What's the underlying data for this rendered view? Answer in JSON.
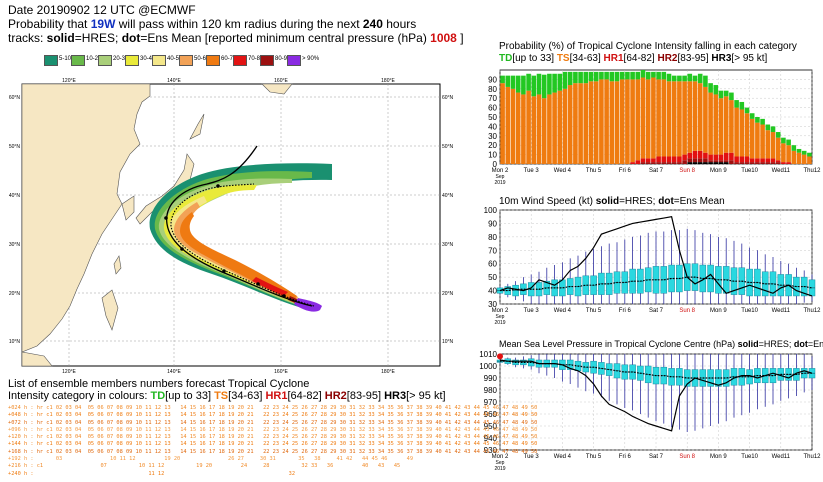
{
  "header": {
    "line1": "Date 20190902 12 UTC   @ECMWF",
    "line2_a": "Probability that ",
    "storm": "19W",
    "line2_b": " will pass within 120 km radius during the next ",
    "hours": "240",
    "line2_c": " hours",
    "line3_a": "tracks: ",
    "solid": "solid",
    "line3_b": "=HRES; ",
    "dot": "dot",
    "line3_c": "=Ens Mean [reported minimum central pressure (hPa) ",
    "pressure": "1008",
    "line3_d": " ]"
  },
  "legend": {
    "items": [
      {
        "label": "5-10",
        "color": "#1a9070"
      },
      {
        "label": "10-20",
        "color": "#69b94a"
      },
      {
        "label": "20-30",
        "color": "#a9cf7a"
      },
      {
        "label": "30-40",
        "color": "#e9ea3a"
      },
      {
        "label": "40-50",
        "color": "#f4e78a"
      },
      {
        "label": "50-60",
        "color": "#f2a257"
      },
      {
        "label": "60-70",
        "color": "#ef7a12"
      },
      {
        "label": "70-80",
        "color": "#e21313"
      },
      {
        "label": "80-90",
        "color": "#9c1010"
      },
      {
        "label": "> 90%",
        "color": "#8a2be2"
      }
    ]
  },
  "map": {
    "lon_labels": [
      "120°E",
      "140°E",
      "160°E",
      "180°E"
    ],
    "lat_labels": [
      "60°N",
      "50°N",
      "40°N",
      "30°N",
      "20°N",
      "10°N"
    ]
  },
  "ensemble": {
    "title": "List of ensemble members numbers forecast Tropical Cyclone",
    "line2_a": "Intensity category in colours: ",
    "td": "TD",
    "td_r": "[up to 33]  ",
    "ts": "TS",
    "ts_r": "[34-63]  ",
    "h1": "HR1",
    "h1_r": "[64-82]  ",
    "h2": "HR2",
    "h2_r": "[83-95]  ",
    "h3": "HR3",
    "h3_r": "[> 95 kt]",
    "rows": [
      "+024 h : hr c1 02 03 04  05 06 07 08 09 10 11 12 13   14 15 16 17 18 19 20 21   22 23 24 25 26 27 28 29 30 31 32 33 34 35 36 37 38 39 40 41 42 43 44 45 46 47 48 49 50",
      "+048 h : hr c1 02 03 04  05 06 07 08 09 10 11 12 13   14 15 16 17 18 19 20 21   22 23 24 25 26 27 28 29 30 31 32 33 34 35 36 37 38 39 40 41 42 43 44 45 46 47 48 49 50",
      "+072 h : hr c1 02 03 04  05 06 07 08 09 10 11 12 13   14 15 16 17 18 19 20 21   22 23 24 25 26 27 28 29 30 31 32 33 34 35 36 37 38 39 40 41 42 43 44 45 46 47 48 49 50",
      "+096 h : hr c1 02 03 04  05 06 07 08 09 10 11 12 13   14 15 16 17 18 19 20 21   22 23 24 25 26 27 28 29 30 31 32 33 34 35 36 37 38 39 40 41 42 43 44 45 46 47 48 49 50",
      "+120 h : hr c1 02 03 04  05 06 07 08 09 10 11 12 13   14 15 16 17 18 19 20 21   22 23 24 25 26 27 28 29 30 31 32 33 34 35 36 37 38 39 40 41 42 43 44 45 46 47 48 49 50",
      "+144 h : hr c1 02 03 04  05 06 07 08 09 10 11 12 13   14 15 16 17 18 19 20 21   22 23 24 25 26 27 28 29 30 31 32 33 34 35 36 37 38 39 40 41 42 43 44 45 46 47 48 49 50",
      "+168 h : hr c1 02 03 04  05 06 07 08 09 10 11 12 13   14 15 16 17 18 19 20 21   22 23 24 25 26 27 28 29 30 31 32 33 34 35 36 37 38 39 40 41 42 43 44 45 46 47 48 49 50",
      "+192 h :       03               10 11 12         19 20               26 27     30 31       35   38     41 42   44 45 46      49",
      "+216 h : c1                  07          10 11 12          19 20         24     28          32 33   36         40   43   45",
      "+240 h :                                    11 12                                       32"
    ]
  },
  "chart_data": [
    {
      "type": "bar",
      "title": "Probability (%) of Tropical Cyclone Intensity falling in each category",
      "legend": [
        {
          "name": "TD",
          "range": "[up to 33]",
          "color": "#22c822"
        },
        {
          "name": "TS",
          "range": "[34-63]",
          "color": "#ef7b10"
        },
        {
          "name": "HR1",
          "range": "[64-82]",
          "color": "#e21010"
        },
        {
          "name": "HR2",
          "range": "[83-95]",
          "color": "#a01010"
        },
        {
          "name": "HR3",
          "range": "[> 95 kt]",
          "color": "#000000"
        }
      ],
      "ylim": [
        0,
        100
      ],
      "yticks": [
        0,
        10,
        20,
        30,
        40,
        50,
        60,
        70,
        80,
        90
      ],
      "xticks": [
        "Mon 2\nSep\n2019",
        "Tue 3",
        "Wed 4",
        "Thu 5",
        "Fri 6",
        "Sat 7",
        "Sun 8",
        "Mon 9",
        "Tue10",
        "Wed11",
        "Thu12"
      ],
      "series": [
        {
          "name": "TD",
          "values": [
            8,
            12,
            14,
            18,
            20,
            18,
            22,
            22,
            25,
            22,
            20,
            18,
            18,
            14,
            12,
            12,
            12,
            10,
            10,
            8,
            8,
            10,
            10,
            8,
            8,
            8,
            8,
            8,
            8,
            6,
            8,
            8,
            8,
            6,
            6,
            6,
            8,
            6,
            10,
            12,
            10,
            10,
            8,
            6,
            8,
            8,
            8,
            6,
            6,
            6,
            6,
            6,
            6,
            6,
            6,
            6,
            6,
            4,
            4,
            4
          ]
        },
        {
          "name": "TS",
          "values": [
            86,
            82,
            80,
            76,
            74,
            78,
            72,
            74,
            70,
            74,
            76,
            78,
            80,
            84,
            86,
            86,
            86,
            88,
            88,
            90,
            90,
            88,
            88,
            90,
            90,
            88,
            86,
            86,
            84,
            86,
            82,
            82,
            80,
            80,
            80,
            78,
            76,
            74,
            72,
            70,
            66,
            64,
            60,
            60,
            56,
            52,
            50,
            46,
            42,
            38,
            36,
            30,
            28,
            24,
            20,
            18,
            14,
            12,
            10,
            8
          ]
        },
        {
          "name": "HR1",
          "values": [
            0,
            0,
            0,
            0,
            0,
            0,
            0,
            0,
            0,
            0,
            0,
            0,
            0,
            0,
            0,
            0,
            0,
            0,
            0,
            0,
            0,
            0,
            0,
            0,
            0,
            2,
            4,
            4,
            4,
            4,
            6,
            6,
            6,
            6,
            6,
            6,
            6,
            8,
            8,
            6,
            6,
            6,
            6,
            8,
            8,
            6,
            6,
            6,
            4,
            4,
            4,
            4,
            4,
            2,
            2,
            2,
            0,
            0,
            0,
            0
          ]
        },
        {
          "name": "HR2",
          "values": [
            0,
            0,
            0,
            0,
            0,
            0,
            0,
            0,
            0,
            0,
            0,
            0,
            0,
            0,
            0,
            0,
            0,
            0,
            0,
            0,
            0,
            0,
            0,
            0,
            0,
            0,
            0,
            2,
            2,
            2,
            2,
            2,
            2,
            2,
            2,
            4,
            4,
            4,
            4,
            4,
            2,
            2,
            2,
            2,
            4,
            2,
            2,
            2,
            2,
            2,
            2,
            2,
            2,
            2,
            0,
            0,
            0,
            0,
            0,
            0
          ]
        },
        {
          "name": "HR3",
          "values": [
            0,
            0,
            0,
            0,
            0,
            0,
            0,
            0,
            0,
            0,
            0,
            0,
            0,
            0,
            0,
            0,
            0,
            0,
            0,
            0,
            0,
            0,
            0,
            0,
            0,
            0,
            0,
            0,
            0,
            0,
            0,
            0,
            0,
            0,
            0,
            0,
            2,
            2,
            2,
            2,
            2,
            2,
            2,
            2,
            0,
            0,
            0,
            0,
            0,
            0,
            0,
            0,
            0,
            0,
            0,
            0,
            0,
            0,
            0,
            0
          ]
        }
      ]
    },
    {
      "type": "line",
      "title": "10m Wind Speed (kt) solid=HRES; dot=Ens Mean",
      "title_a": "10m Wind Speed (kt) ",
      "title_solid": "solid",
      "title_b": "=HRES; ",
      "title_dot": "dot",
      "title_c": "=Ens Mean",
      "ylim": [
        30,
        100
      ],
      "yticks": [
        30,
        40,
        50,
        60,
        70,
        80,
        90,
        100
      ],
      "xticks": [
        "Mon 2\nSep\n2019",
        "Tue 3",
        "Wed 4",
        "Thu 5",
        "Fri 6",
        "Sat 7",
        "Sun 8",
        "Mon 9",
        "Tue10",
        "Wed11",
        "Thu12"
      ],
      "x_days": [
        0,
        0.25,
        0.5,
        0.75,
        1,
        1.25,
        1.5,
        1.75,
        2,
        2.25,
        2.5,
        2.75,
        3,
        3.25,
        3.5,
        3.75,
        4,
        4.25,
        4.5,
        4.75,
        5,
        5.25,
        5.5,
        5.75,
        6,
        6.25,
        6.5,
        6.75,
        7,
        7.25,
        7.5,
        7.75,
        8,
        8.25,
        8.5,
        8.75,
        9,
        9.25,
        9.5,
        9.75,
        10
      ],
      "hres": [
        40,
        42,
        41,
        40,
        42,
        48,
        46,
        44,
        48,
        55,
        58,
        64,
        72,
        82,
        84,
        86,
        88,
        90,
        91,
        92,
        93,
        94,
        95,
        70,
        50,
        45,
        48,
        52,
        45,
        38,
        40,
        42,
        44,
        42,
        40,
        38,
        42,
        44,
        40,
        38,
        36
      ],
      "ens_mean": [
        40,
        40,
        41,
        41,
        41,
        41,
        42,
        42,
        42,
        43,
        43,
        44,
        44,
        45,
        45,
        46,
        46,
        47,
        47,
        48,
        48,
        48,
        49,
        49,
        50,
        50,
        49,
        49,
        48,
        48,
        47,
        47,
        46,
        46,
        45,
        45,
        44,
        44,
        43,
        43,
        42
      ],
      "box_med": [
        40,
        40,
        40,
        41,
        41,
        41,
        42,
        42,
        42,
        43,
        43,
        44,
        44,
        45,
        45,
        46,
        46,
        47,
        47,
        48,
        48,
        48,
        49,
        49,
        50,
        50,
        49,
        49,
        48,
        48,
        47,
        47,
        46,
        46,
        45,
        45,
        44,
        44,
        43,
        43,
        42
      ],
      "box_spread": [
        2,
        3,
        4,
        4,
        5,
        5,
        5,
        6,
        6,
        6,
        7,
        7,
        7,
        8,
        8,
        8,
        8,
        9,
        9,
        9,
        10,
        10,
        10,
        10,
        10,
        10,
        10,
        10,
        10,
        10,
        10,
        10,
        10,
        10,
        9,
        9,
        8,
        8,
        7,
        7,
        6
      ],
      "whisker_spread": [
        3,
        5,
        7,
        9,
        11,
        13,
        15,
        17,
        19,
        21,
        23,
        25,
        27,
        28,
        30,
        30,
        32,
        33,
        34,
        35,
        36,
        36,
        36,
        36,
        36,
        35,
        34,
        33,
        32,
        31,
        30,
        28,
        26,
        24,
        22,
        20,
        18,
        16,
        14,
        12,
        10
      ]
    },
    {
      "type": "line",
      "title": "Mean Sea Level Pressure in Tropical Cyclone Centre (hPa) solid=HRES; dot=Ens Mean",
      "title_a": "Mean Sea Level Pressure in Tropical Cyclone Centre (hPa) ",
      "title_solid": "solid",
      "title_b": "=HRES; ",
      "title_dot": "dot",
      "title_c": "=Ens Mean",
      "ylim": [
        930,
        1010
      ],
      "yticks": [
        930,
        940,
        950,
        960,
        970,
        980,
        990,
        1000,
        1010
      ],
      "xticks": [
        "Mon 2\nSep\n2019",
        "Tue 3",
        "Wed 4",
        "Thu 5",
        "Fri 6",
        "Sat 7",
        "Sun 8",
        "Mon 9",
        "Tue10",
        "Wed11",
        "Thu12"
      ],
      "observed": [
        {
          "x": 0,
          "y": 1008
        }
      ],
      "x_days": [
        0,
        0.25,
        0.5,
        0.75,
        1,
        1.25,
        1.5,
        1.75,
        2,
        2.25,
        2.5,
        2.75,
        3,
        3.25,
        3.5,
        3.75,
        4,
        4.25,
        4.5,
        4.75,
        5,
        5.25,
        5.5,
        5.75,
        6,
        6.25,
        6.5,
        6.75,
        7,
        7.25,
        7.5,
        7.75,
        8,
        8.25,
        8.5,
        8.75,
        9,
        9.25,
        9.5,
        9.75,
        10
      ],
      "hres": [
        1005,
        1004,
        1004,
        1004,
        1004,
        1002,
        1002,
        1002,
        1001,
        998,
        996,
        992,
        985,
        975,
        968,
        965,
        962,
        958,
        955,
        952,
        950,
        948,
        946,
        975,
        985,
        990,
        988,
        986,
        984,
        986,
        990,
        992,
        992,
        990,
        992,
        994,
        992,
        990,
        994,
        996,
        994
      ],
      "ens_mean": [
        1004,
        1004,
        1003,
        1003,
        1003,
        1002,
        1002,
        1002,
        1001,
        1001,
        1000,
        999,
        999,
        998,
        997,
        996,
        995,
        995,
        994,
        993,
        992,
        992,
        991,
        991,
        990,
        990,
        990,
        990,
        990,
        990,
        991,
        991,
        991,
        992,
        992,
        992,
        993,
        993,
        993,
        994,
        994
      ],
      "box_med": [
        1004,
        1004,
        1003,
        1003,
        1003,
        1002,
        1002,
        1002,
        1001,
        1001,
        1000,
        999,
        999,
        998,
        997,
        996,
        995,
        995,
        994,
        993,
        992,
        992,
        991,
        991,
        990,
        990,
        990,
        990,
        990,
        990,
        991,
        991,
        991,
        992,
        992,
        992,
        993,
        993,
        993,
        994,
        994
      ],
      "box_spread": [
        1,
        2,
        2,
        2,
        3,
        3,
        3,
        3,
        4,
        4,
        4,
        4,
        5,
        5,
        5,
        6,
        6,
        6,
        6,
        7,
        7,
        7,
        7,
        7,
        7,
        7,
        7,
        7,
        7,
        7,
        7,
        7,
        6,
        6,
        6,
        6,
        5,
        5,
        5,
        4,
        4
      ],
      "whisker_spread": [
        2,
        3,
        4,
        5,
        6,
        8,
        10,
        12,
        14,
        16,
        18,
        20,
        22,
        24,
        26,
        28,
        30,
        32,
        34,
        36,
        38,
        40,
        42,
        44,
        45,
        44,
        42,
        40,
        38,
        36,
        34,
        32,
        30,
        28,
        26,
        24,
        22,
        20,
        18,
        16,
        14
      ]
    }
  ]
}
